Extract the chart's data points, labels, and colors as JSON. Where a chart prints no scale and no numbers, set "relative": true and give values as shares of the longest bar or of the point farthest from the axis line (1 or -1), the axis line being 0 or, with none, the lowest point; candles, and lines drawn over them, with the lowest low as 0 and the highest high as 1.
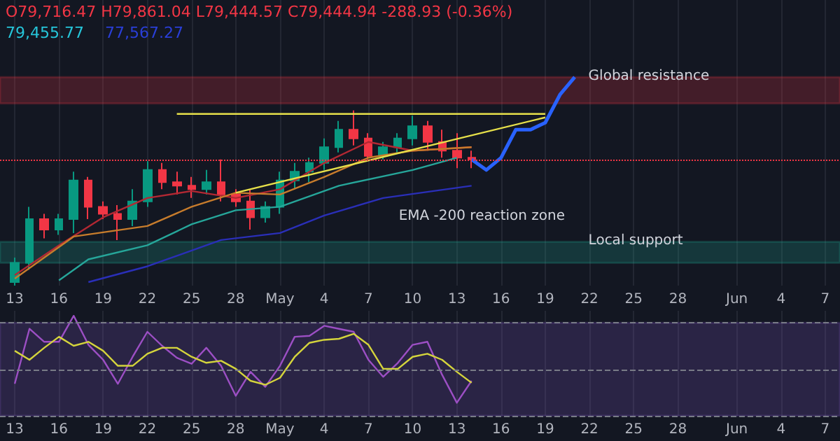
{
  "chart_data": [
    {
      "type": "candlestick",
      "subtitle": "O79,716.47 H79,861.04 L79,444.57 C79,444.94 -288.93 (-0.36%)",
      "relative": true,
      "grid": "x",
      "annotations": [
        "79,455.77",
        "77,567.27"
      ],
      "xlim": [
        "--04-12",
        "--06-08"
      ],
      "xticks": [
        {
          "value": "--04-13",
          "label": "13"
        },
        {
          "value": "--04-16",
          "label": "16"
        },
        {
          "value": "--04-19",
          "label": "19"
        },
        {
          "value": "--04-22",
          "label": "22"
        },
        {
          "value": "--04-25",
          "label": "25"
        },
        {
          "value": "--04-28",
          "label": "28"
        },
        {
          "value": "--05-01",
          "label": "May"
        },
        {
          "value": "--05-04",
          "label": "4"
        },
        {
          "value": "--05-07",
          "label": "7"
        },
        {
          "value": "--05-10",
          "label": "10"
        },
        {
          "value": "--05-13",
          "label": "13"
        },
        {
          "value": "--05-16",
          "label": "16"
        },
        {
          "value": "--05-19",
          "label": "19"
        },
        {
          "value": "--05-22",
          "label": "22"
        },
        {
          "value": "--05-25",
          "label": "25"
        },
        {
          "value": "--05-28",
          "label": "28"
        },
        {
          "value": "--06-01",
          "label": "Jun"
        },
        {
          "value": "--06-04",
          "label": "4"
        },
        {
          "value": "--06-07",
          "label": "7"
        }
      ],
      "x": [
        "--04-13",
        "--04-14",
        "--04-15",
        "--04-16",
        "--04-17",
        "--04-18",
        "--04-19",
        "--04-20",
        "--04-21",
        "--04-22",
        "--04-23",
        "--04-24",
        "--04-25",
        "--04-26",
        "--04-27",
        "--04-28",
        "--04-29",
        "--04-30",
        "--05-01",
        "--05-02",
        "--05-03",
        "--05-04",
        "--05-05",
        "--05-06",
        "--05-07",
        "--05-08",
        "--05-09",
        "--05-10",
        "--05-11",
        "--05-12",
        "--05-13",
        "--05-14"
      ],
      "ohlc": [
        [
          0.02,
          0.16,
          0,
          0.13
        ],
        [
          0.13,
          0.45,
          0.09,
          0.38
        ],
        [
          0.38,
          0.41,
          0.27,
          0.32
        ],
        [
          0.32,
          0.41,
          0.29,
          0.38
        ],
        [
          0.38,
          0.65,
          0.3,
          0.6
        ],
        [
          0.6,
          0.62,
          0.38,
          0.45
        ],
        [
          0.45,
          0.48,
          0.38,
          0.41
        ],
        [
          0.41,
          0.46,
          0.26,
          0.38
        ],
        [
          0.38,
          0.55,
          0.34,
          0.48
        ],
        [
          0.48,
          0.71,
          0.45,
          0.66
        ],
        [
          0.66,
          0.7,
          0.55,
          0.59
        ],
        [
          0.59,
          0.65,
          0.52,
          0.57
        ],
        [
          0.57,
          0.62,
          0.5,
          0.55
        ],
        [
          0.55,
          0.66,
          0.52,
          0.59
        ],
        [
          0.59,
          0.72,
          0.48,
          0.52
        ],
        [
          0.52,
          0.55,
          0.45,
          0.48
        ],
        [
          0.48,
          0.55,
          0.32,
          0.39
        ],
        [
          0.39,
          0.48,
          0.36,
          0.45
        ],
        [
          0.45,
          0.65,
          0.41,
          0.6
        ],
        [
          0.6,
          0.7,
          0.55,
          0.65
        ],
        [
          0.65,
          0.73,
          0.59,
          0.7
        ],
        [
          0.7,
          0.84,
          0.66,
          0.79
        ],
        [
          0.79,
          0.94,
          0.76,
          0.89
        ],
        [
          0.89,
          1,
          0.8,
          0.84
        ],
        [
          0.84,
          0.87,
          0.72,
          0.74
        ],
        [
          0.74,
          0.82,
          0.72,
          0.79
        ],
        [
          0.79,
          0.87,
          0.76,
          0.84
        ],
        [
          0.84,
          0.97,
          0.8,
          0.91
        ],
        [
          0.91,
          0.94,
          0.77,
          0.82
        ],
        [
          0.82,
          0.89,
          0.73,
          0.77
        ],
        [
          0.77,
          0.87,
          0.67,
          0.73
        ],
        [
          0.73,
          0.77,
          0.67,
          0.72
        ]
      ],
      "bands": [
        {
          "axis": "y",
          "from": 1.04,
          "to": 1.19,
          "color": "#f23645",
          "label": "Global resistance"
        },
        {
          "axis": "y",
          "from": 0.13,
          "to": 0.25,
          "color": "#22ab94",
          "label": "Local support"
        }
      ],
      "ref_lines": [
        {
          "axis": "y",
          "value": 0.72,
          "color": "#f23645",
          "line_style": "dotted"
        }
      ],
      "series": [
        {
          "type": "line",
          "color": "#b22833",
          "x": [
            "--04-13",
            "--04-16",
            "--04-19",
            "--04-22",
            "--04-25",
            "--04-28",
            "--05-01",
            "--05-04",
            "--05-07",
            "--05-10",
            "--05-14"
          ],
          "values": [
            0.06,
            0.23,
            0.39,
            0.5,
            0.54,
            0.5,
            0.55,
            0.7,
            0.82,
            0.77,
            0.79
          ]
        },
        {
          "type": "line",
          "color": "#c77c2c",
          "x": [
            "--04-13",
            "--04-17",
            "--04-22",
            "--04-25",
            "--04-28",
            "--05-01",
            "--05-04",
            "--05-07",
            "--05-10",
            "--05-14"
          ],
          "values": [
            0.04,
            0.28,
            0.34,
            0.45,
            0.53,
            0.52,
            0.62,
            0.73,
            0.77,
            0.79
          ]
        },
        {
          "type": "line",
          "color": "#26a69a",
          "x": [
            "--04-16",
            "--04-18",
            "--04-22",
            "--04-25",
            "--04-28",
            "--05-01",
            "--05-05",
            "--05-10",
            "--05-13"
          ],
          "values": [
            0.03,
            0.15,
            0.23,
            0.35,
            0.43,
            0.45,
            0.57,
            0.66,
            0.73
          ]
        },
        {
          "type": "line",
          "name": "EMA -200 reaction zone",
          "color": "#2a2fb8",
          "x": [
            "--04-18",
            "--04-22",
            "--04-27",
            "--05-01",
            "--05-04",
            "--05-08",
            "--05-14"
          ],
          "values": [
            0.02,
            0.11,
            0.26,
            0.3,
            0.4,
            0.5,
            0.57
          ]
        },
        {
          "type": "line",
          "color": "#e6e04a",
          "x": [
            "--04-24",
            "--05-19"
          ],
          "values": [
            0.98,
            0.98
          ]
        },
        {
          "type": "line",
          "color": "#e6e04a",
          "x": [
            "--04-28",
            "--05-19"
          ],
          "values": [
            0.53,
            0.96
          ]
        },
        {
          "type": "line",
          "color": "#2962ff",
          "x": [
            "--05-14",
            "--05-15",
            "--05-16",
            "--05-17",
            "--05-18",
            "--05-19",
            "--05-20",
            "--05-21"
          ],
          "values": [
            0.72,
            0.66,
            0.73,
            0.89,
            0.89,
            0.93,
            1.09,
            1.19
          ]
        }
      ]
    },
    {
      "type": "line",
      "relative": true,
      "grid": "x",
      "xlim": [
        "--04-12",
        "--06-08"
      ],
      "xticks": [
        {
          "value": "--04-13",
          "label": "13"
        },
        {
          "value": "--04-16",
          "label": "16"
        },
        {
          "value": "--04-19",
          "label": "19"
        },
        {
          "value": "--04-22",
          "label": "22"
        },
        {
          "value": "--04-25",
          "label": "25"
        },
        {
          "value": "--04-28",
          "label": "28"
        },
        {
          "value": "--05-01",
          "label": "May"
        },
        {
          "value": "--05-04",
          "label": "4"
        },
        {
          "value": "--05-07",
          "label": "7"
        },
        {
          "value": "--05-10",
          "label": "10"
        },
        {
          "value": "--05-13",
          "label": "13"
        },
        {
          "value": "--05-16",
          "label": "16"
        },
        {
          "value": "--05-19",
          "label": "19"
        },
        {
          "value": "--05-22",
          "label": "22"
        },
        {
          "value": "--05-25",
          "label": "25"
        },
        {
          "value": "--05-28",
          "label": "28"
        },
        {
          "value": "--06-01",
          "label": "Jun"
        },
        {
          "value": "--06-04",
          "label": "4"
        },
        {
          "value": "--06-07",
          "label": "7"
        }
      ],
      "x": [
        "--04-13",
        "--04-14",
        "--04-15",
        "--04-16",
        "--04-17",
        "--04-18",
        "--04-19",
        "--04-20",
        "--04-21",
        "--04-22",
        "--04-23",
        "--04-24",
        "--04-25",
        "--04-26",
        "--04-27",
        "--04-28",
        "--04-29",
        "--04-30",
        "--05-01",
        "--05-02",
        "--05-03",
        "--05-04",
        "--05-05",
        "--05-06",
        "--05-07",
        "--05-08",
        "--05-09",
        "--05-10",
        "--05-11",
        "--05-12",
        "--05-13",
        "--05-14"
      ],
      "bands": [
        {
          "axis": "y",
          "from": 0,
          "to": 0.93,
          "color": "#7e57c2"
        }
      ],
      "ref_lines": [
        {
          "axis": "y",
          "value": 0.93,
          "color": "#787b86",
          "line_style": "dashed"
        },
        {
          "axis": "y",
          "value": 0.46,
          "color": "#787b86",
          "line_style": "dashed"
        },
        {
          "axis": "y",
          "value": 0,
          "color": "#787b86",
          "line_style": "dashed"
        }
      ],
      "series": [
        {
          "color": "#9c4fc4",
          "values": [
            0.32,
            0.87,
            0.74,
            0.74,
            1,
            0.71,
            0.56,
            0.32,
            0.59,
            0.84,
            0.7,
            0.58,
            0.52,
            0.68,
            0.5,
            0.2,
            0.44,
            0.29,
            0.5,
            0.79,
            0.8,
            0.9,
            0.87,
            0.84,
            0.56,
            0.39,
            0.53,
            0.71,
            0.74,
            0.41,
            0.13,
            0.35
          ]
        },
        {
          "color": "#d4d43c",
          "values": [
            0.65,
            0.56,
            0.68,
            0.79,
            0.7,
            0.74,
            0.65,
            0.5,
            0.5,
            0.62,
            0.68,
            0.68,
            0.59,
            0.53,
            0.55,
            0.47,
            0.35,
            0.31,
            0.38,
            0.59,
            0.73,
            0.76,
            0.77,
            0.82,
            0.71,
            0.47,
            0.47,
            0.59,
            0.62,
            0.56,
            0.44,
            0.33
          ]
        }
      ]
    }
  ]
}
